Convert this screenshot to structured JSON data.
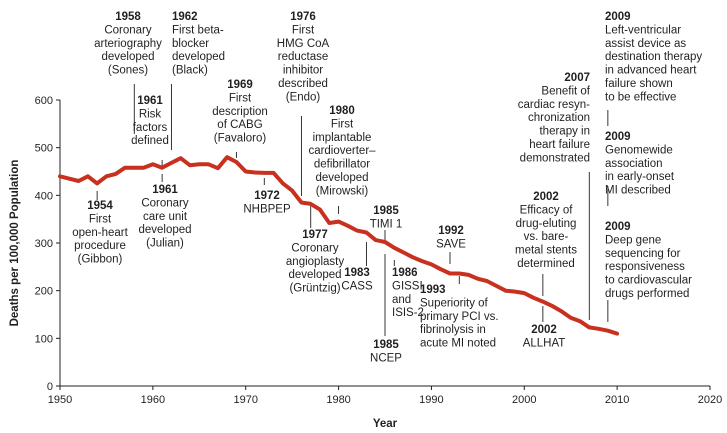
{
  "chart_data": {
    "type": "line",
    "xlabel": "Year",
    "ylabel": "Deaths per 100,000 Population",
    "xlim": [
      1950,
      2020
    ],
    "ylim": [
      0,
      600
    ],
    "xticks": [
      1950,
      1960,
      1970,
      1980,
      1990,
      2000,
      2010,
      2020
    ],
    "yticks": [
      0,
      100,
      200,
      300,
      400,
      500,
      600
    ],
    "line_color": "#c8311f",
    "series": [
      {
        "name": "Deaths per 100,000 Population",
        "x": [
          1950,
          1951,
          1952,
          1953,
          1954,
          1955,
          1956,
          1957,
          1958,
          1959,
          1960,
          1961,
          1962,
          1963,
          1964,
          1965,
          1966,
          1967,
          1968,
          1969,
          1970,
          1971,
          1972,
          1973,
          1974,
          1975,
          1976,
          1977,
          1978,
          1979,
          1980,
          1981,
          1982,
          1983,
          1984,
          1985,
          1986,
          1987,
          1988,
          1989,
          1990,
          1991,
          1992,
          1993,
          1994,
          1995,
          1996,
          1997,
          1998,
          1999,
          2000,
          2001,
          2002,
          2003,
          2004,
          2005,
          2006,
          2007,
          2008,
          2009,
          2010
        ],
        "values": [
          440,
          435,
          430,
          440,
          425,
          440,
          445,
          458,
          458,
          458,
          465,
          458,
          468,
          478,
          463,
          465,
          465,
          457,
          480,
          470,
          450,
          448,
          447,
          447,
          425,
          410,
          385,
          382,
          370,
          342,
          345,
          336,
          326,
          322,
          306,
          302,
          290,
          280,
          270,
          262,
          255,
          245,
          236,
          236,
          233,
          225,
          220,
          210,
          200,
          198,
          195,
          185,
          177,
          168,
          157,
          143,
          136,
          123,
          120,
          116,
          110
        ]
      }
    ],
    "annotations": [
      {
        "id": "1954",
        "year": "1954",
        "lines": [
          "First",
          "open-heart",
          "procedure",
          "(Gibbon)"
        ]
      },
      {
        "id": "1958",
        "year": "1958",
        "lines": [
          "Coronary",
          "arteriography",
          "developed",
          "(Sones)"
        ]
      },
      {
        "id": "1961a",
        "year": "1961",
        "lines": [
          "Risk",
          "factors",
          "defined"
        ]
      },
      {
        "id": "1961b",
        "year": "1961",
        "lines": [
          "Coronary",
          "care unit",
          "developed",
          "(Julian)"
        ]
      },
      {
        "id": "1962",
        "year": "1962",
        "lines": [
          "First beta-",
          "blocker",
          "developed",
          "(Black)"
        ]
      },
      {
        "id": "1969",
        "year": "1969",
        "lines": [
          "First",
          "description",
          "of CABG",
          "(Favaloro)"
        ]
      },
      {
        "id": "1972",
        "year": "1972",
        "lines": [
          "NHBPEP"
        ]
      },
      {
        "id": "1976",
        "year": "1976",
        "lines": [
          "First",
          "HMG CoA",
          "reductase",
          "inhibitor",
          "described",
          "(Endo)"
        ]
      },
      {
        "id": "1977",
        "year": "1977",
        "lines": [
          "Coronary",
          "angioplasty",
          "developed",
          "(Grüntzig)"
        ]
      },
      {
        "id": "1980",
        "year": "1980",
        "lines": [
          "First",
          "implantable",
          "cardioverter–",
          "defibrillator",
          "developed",
          "(Mirowski)"
        ]
      },
      {
        "id": "1983",
        "year": "1983",
        "lines": [
          "CASS"
        ]
      },
      {
        "id": "1985a",
        "year": "1985",
        "lines": [
          "TIMI 1"
        ]
      },
      {
        "id": "1985b",
        "year": "1985",
        "lines": [
          "NCEP"
        ]
      },
      {
        "id": "1986",
        "year": "1986",
        "lines": [
          "GISSI",
          "and",
          "ISIS-2"
        ]
      },
      {
        "id": "1992",
        "year": "1992",
        "lines": [
          "SAVE"
        ]
      },
      {
        "id": "1993",
        "year": "1993",
        "lines": [
          "Superiority of",
          "primary PCI vs.",
          "fibrinolysis in",
          "acute MI noted"
        ]
      },
      {
        "id": "2002a",
        "year": "2002",
        "lines": [
          "Efficacy of",
          "drug-eluting",
          "vs. bare-",
          "metal stents",
          "determined"
        ]
      },
      {
        "id": "2002b",
        "year": "2002",
        "lines": [
          "ALLHAT"
        ]
      },
      {
        "id": "2007",
        "year": "2007",
        "lines": [
          "Benefit of",
          "cardiac resyn-",
          "chronization",
          "therapy in",
          "heart failure",
          "demonstrated"
        ]
      },
      {
        "id": "2009a",
        "year": "2009",
        "lines": [
          "Left-ventricular",
          "assist device as",
          "destination therapy",
          "in advanced heart",
          "failure shown",
          "to be effective"
        ]
      },
      {
        "id": "2009b",
        "year": "2009",
        "lines": [
          "Genomewide",
          "association",
          "in early-onset",
          "MI described"
        ]
      },
      {
        "id": "2009c",
        "year": "2009",
        "lines": [
          "Deep gene",
          "sequencing for",
          "responsiveness",
          "to cardiovascular",
          "drugs performed"
        ]
      }
    ]
  }
}
